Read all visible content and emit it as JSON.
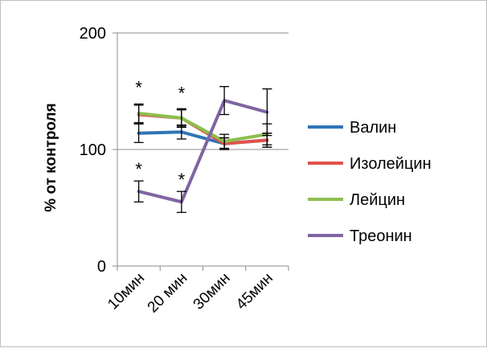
{
  "chart_data": {
    "type": "line",
    "title": "",
    "xlabel": "",
    "ylabel": "% от контроля",
    "categories": [
      "10мин",
      "20 мин",
      "30мин",
      "45мин"
    ],
    "ylim": [
      0,
      200
    ],
    "yticks": [
      0,
      100,
      200
    ],
    "gridlines": [
      100,
      200
    ],
    "grid": true,
    "legend_position": "right",
    "series": [
      {
        "name": "Валин",
        "color": "#2e75b6",
        "values": [
          114,
          115,
          105,
          108
        ],
        "errors": [
          8,
          6,
          5,
          6
        ]
      },
      {
        "name": "Изолейцин",
        "color": "#e0534a",
        "values": [
          130,
          127,
          105,
          108
        ],
        "errors": [
          8,
          7,
          5,
          6
        ]
      },
      {
        "name": "Лейцин",
        "color": "#8dbf4c",
        "values": [
          131,
          127,
          107,
          113
        ],
        "errors": [
          8,
          8,
          6,
          9
        ]
      },
      {
        "name": "Треонин",
        "color": "#8064a2",
        "values": [
          64,
          55,
          142,
          132
        ],
        "errors": [
          9,
          9,
          12,
          20
        ]
      }
    ],
    "annotations": [
      {
        "text": "*",
        "category_index": 0,
        "y": 155
      },
      {
        "text": "*",
        "category_index": 1,
        "y": 150
      },
      {
        "text": "*",
        "category_index": 0,
        "y": 85
      },
      {
        "text": "*",
        "category_index": 1,
        "y": 76
      }
    ]
  }
}
